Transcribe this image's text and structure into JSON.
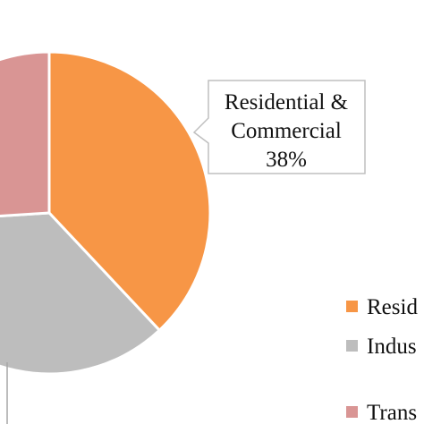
{
  "chart_data": {
    "type": "pie",
    "categories": [
      "Residential & Commercial",
      "Industrial",
      "Transport"
    ],
    "series": [
      {
        "values": [
          38,
          36,
          26
        ]
      }
    ],
    "data_label": {
      "line1": "Residential &",
      "line2": "Commercial",
      "line3": "38%"
    },
    "legend": {
      "placement": "right",
      "entries": [
        "Resid",
        "Indus",
        "Trans"
      ]
    },
    "colors": [
      "#F79646",
      "#BDBDBD",
      "#D99594"
    ],
    "slice_border_color": "#ffffff",
    "label_border_color": "#A6A6A6"
  }
}
